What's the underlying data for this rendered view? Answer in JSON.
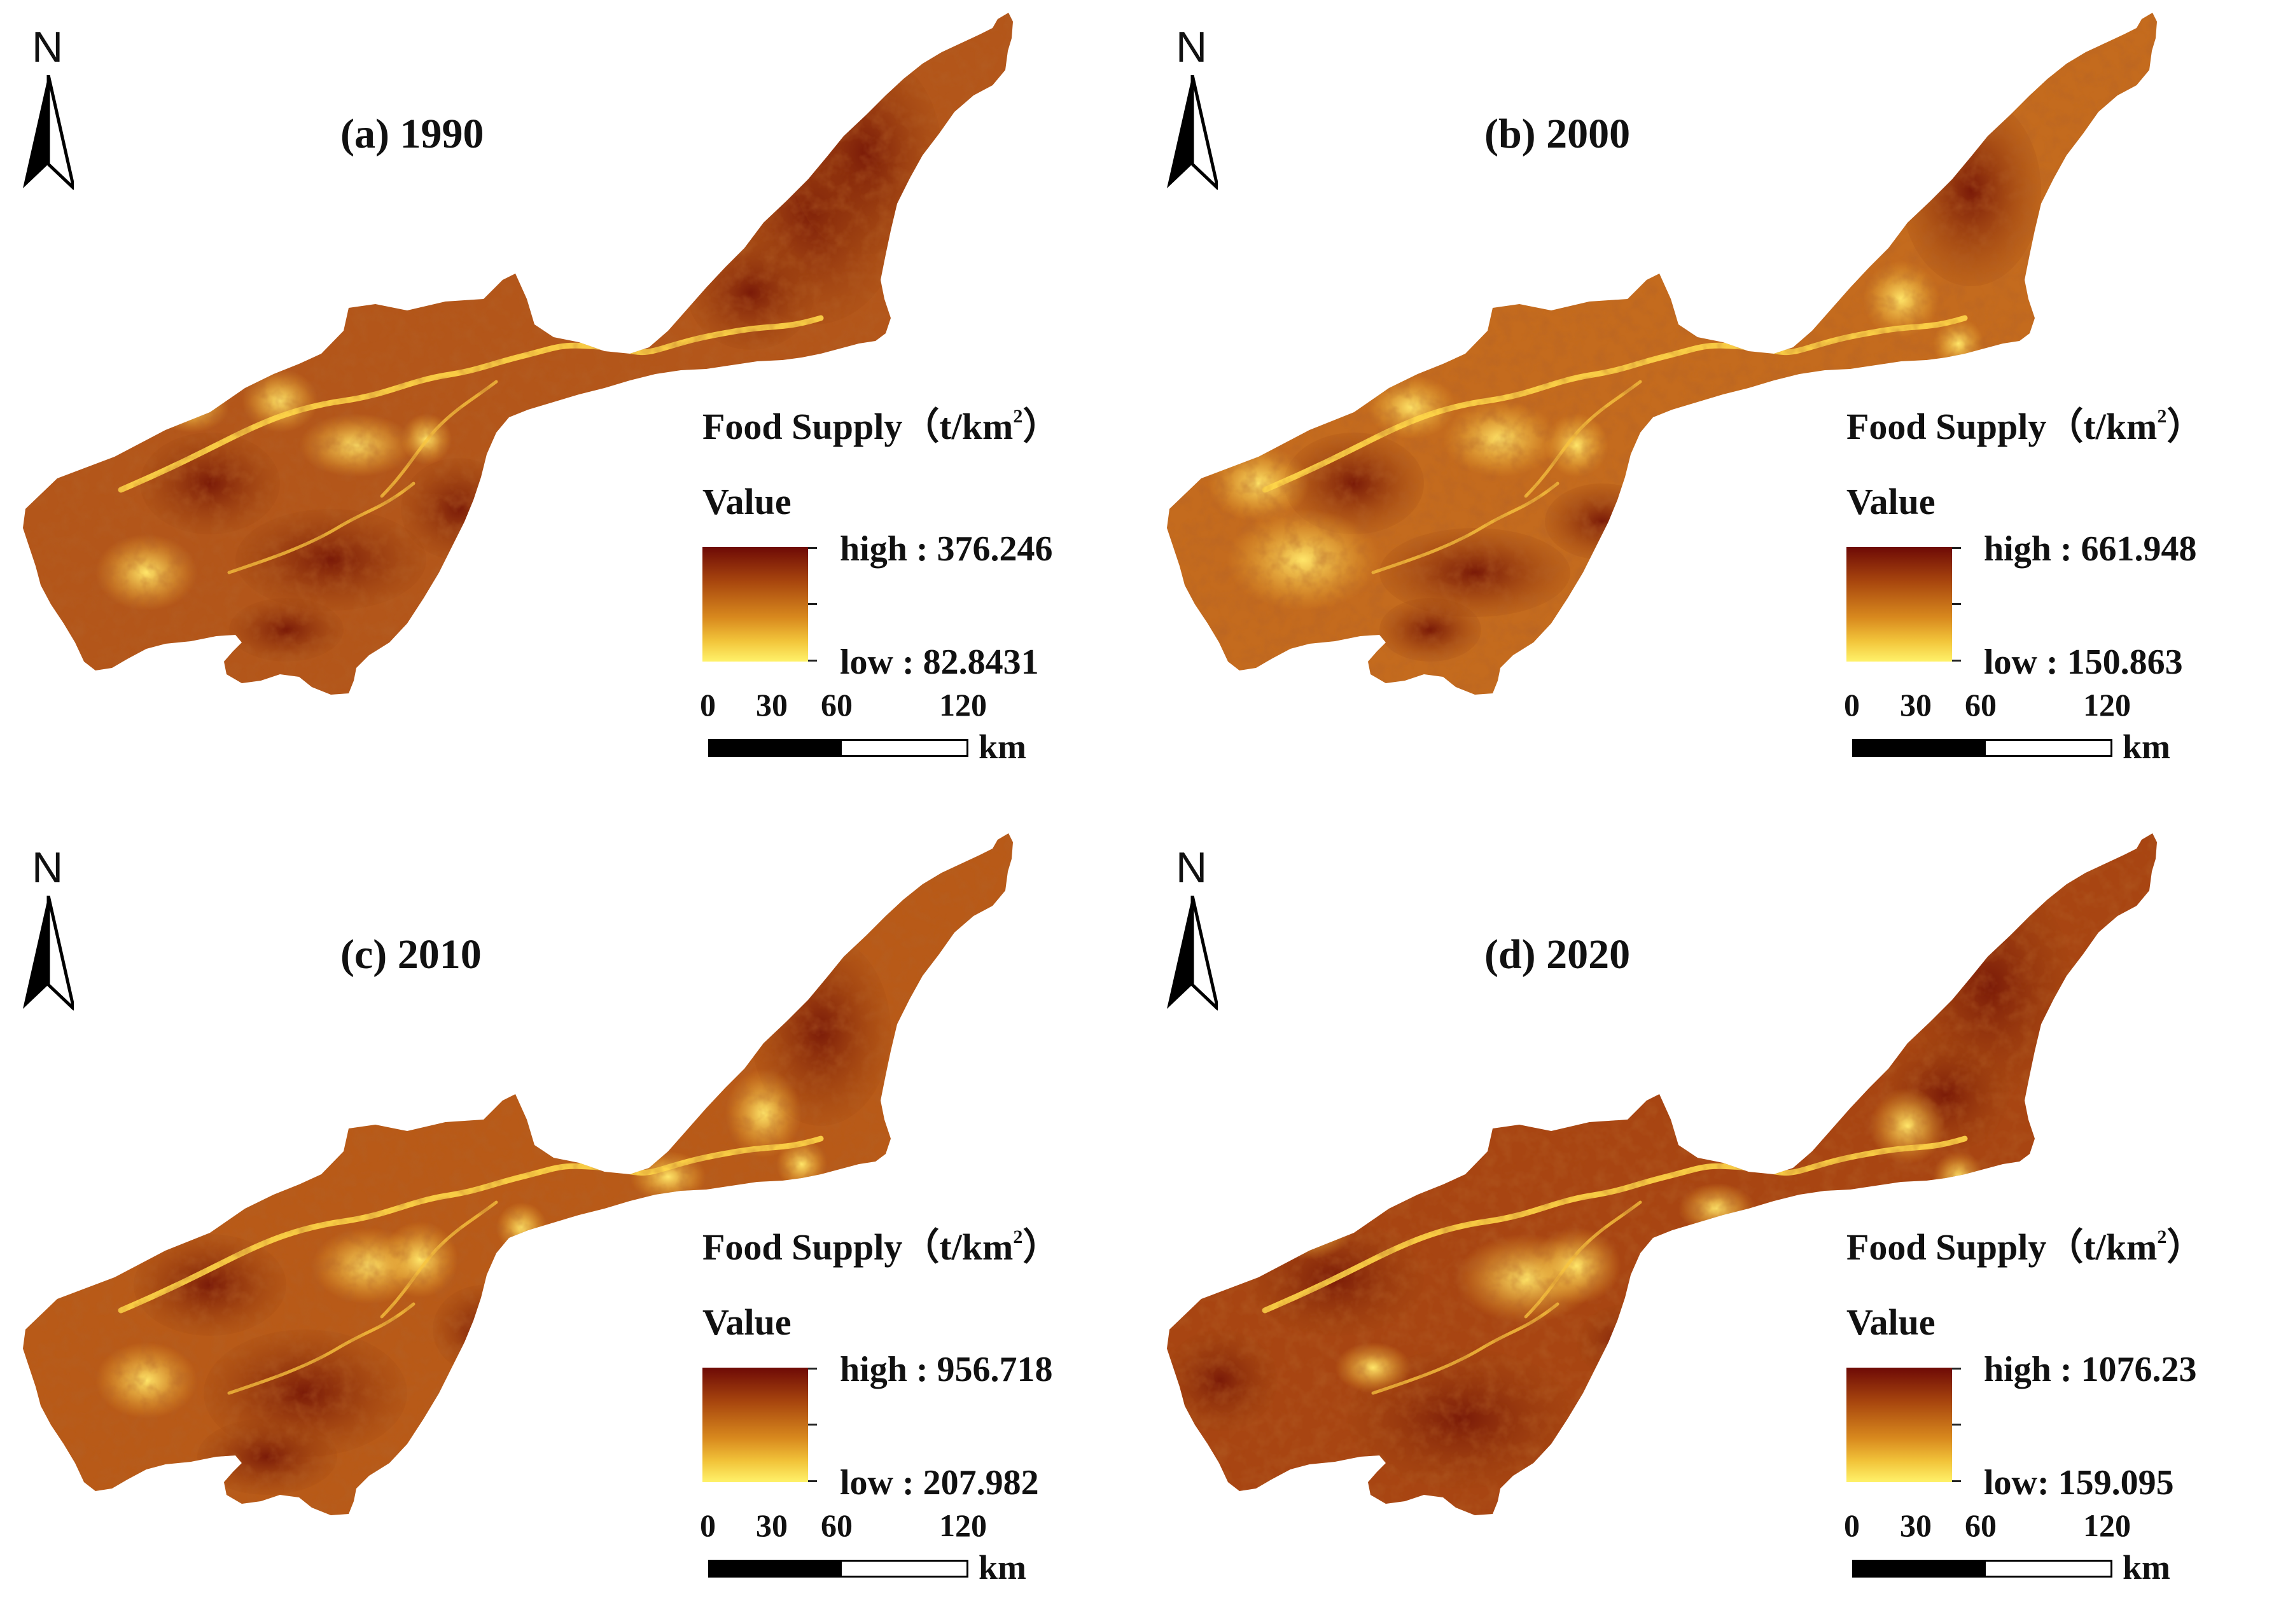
{
  "legend": {
    "title": "Food Supply",
    "unit": "（t/km",
    "unit_sup": "2",
    "unit_close": "）",
    "value_label": "Value"
  },
  "scale_bar": {
    "labels": [
      "0",
      "30",
      "60",
      "120"
    ],
    "unit": "km"
  },
  "north_label": "N",
  "panels": [
    {
      "title": "(a) 1990",
      "high": "high : 376.246",
      "low": "low : 82.8431"
    },
    {
      "title": "(b) 2000",
      "high": "high : 661.948",
      "low": "low : 150.863"
    },
    {
      "title": "(c) 2010",
      "high": "high : 956.718",
      "low": "low : 207.982"
    },
    {
      "title": "(d) 2020",
      "high": "high : 1076.23",
      "low": "low: 159.095"
    }
  ],
  "colors": {
    "ramp_high": "#6e0a06",
    "ramp_mid": "#d98a1e",
    "ramp_low": "#fff26a"
  }
}
